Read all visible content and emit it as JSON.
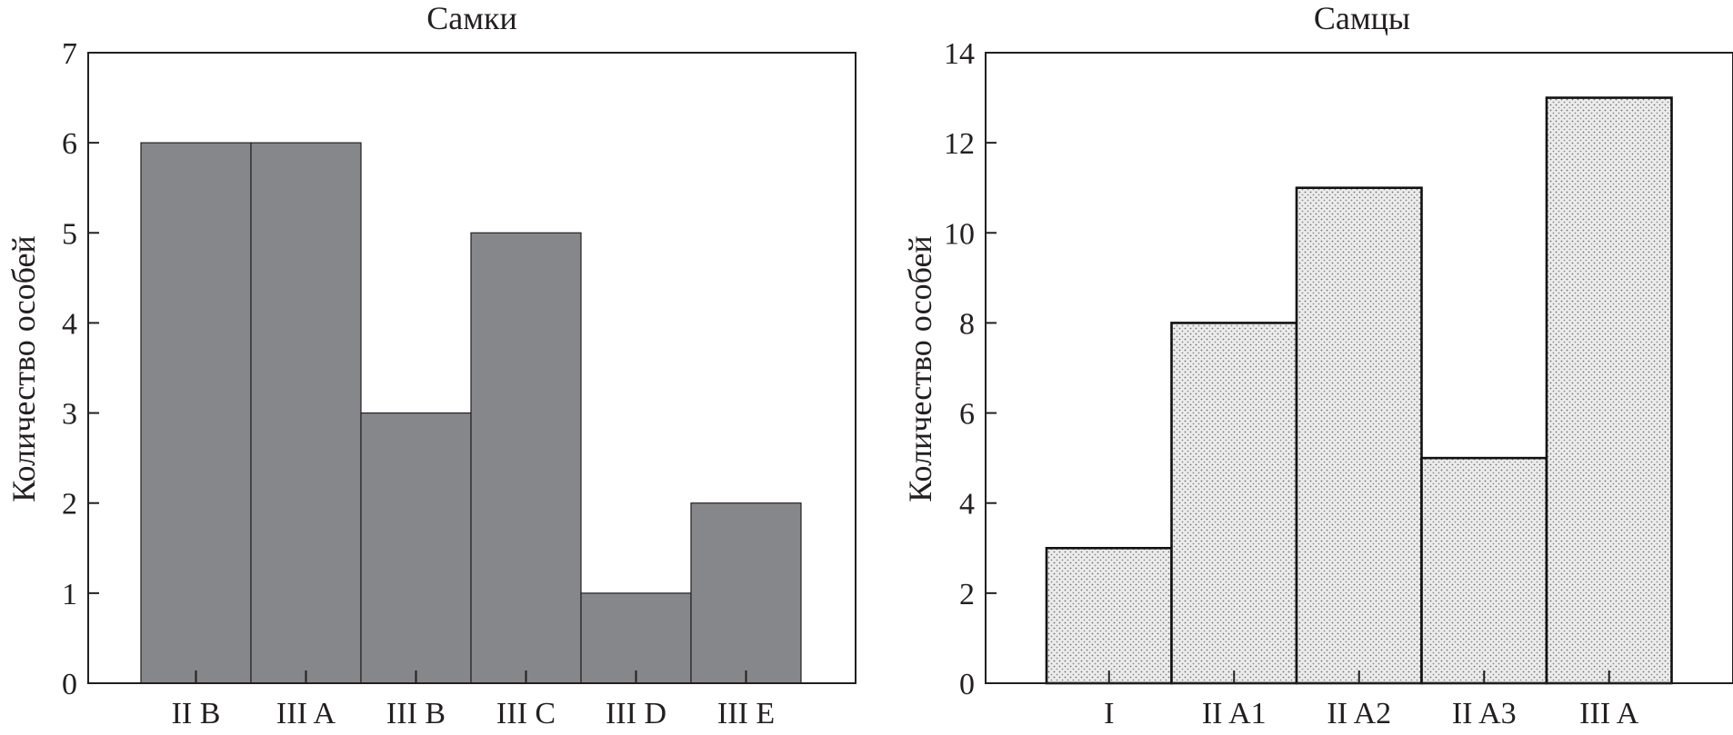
{
  "chart_data": [
    {
      "type": "bar",
      "title": "Самки",
      "xlabel": "",
      "ylabel": "Количество особей",
      "categories": [
        "II B",
        "III A",
        "III B",
        "III C",
        "III D",
        "III E"
      ],
      "values": [
        6,
        6,
        3,
        5,
        1,
        2
      ],
      "ylim": [
        0,
        7
      ],
      "yticks": [
        0,
        1,
        2,
        3,
        4,
        5,
        6,
        7
      ],
      "fill": "#86878a",
      "grid": false
    },
    {
      "type": "bar",
      "title": "Самцы",
      "xlabel": "",
      "ylabel": "Количество особей",
      "categories": [
        "I",
        "II A1",
        "II A2",
        "II A3",
        "III A"
      ],
      "values": [
        3,
        8,
        11,
        5,
        13
      ],
      "ylim": [
        0,
        14
      ],
      "yticks": [
        0,
        2,
        4,
        6,
        8,
        10,
        12,
        14
      ],
      "fill": "#e4e4e4",
      "fill_pattern": "stipple",
      "grid": false
    }
  ]
}
